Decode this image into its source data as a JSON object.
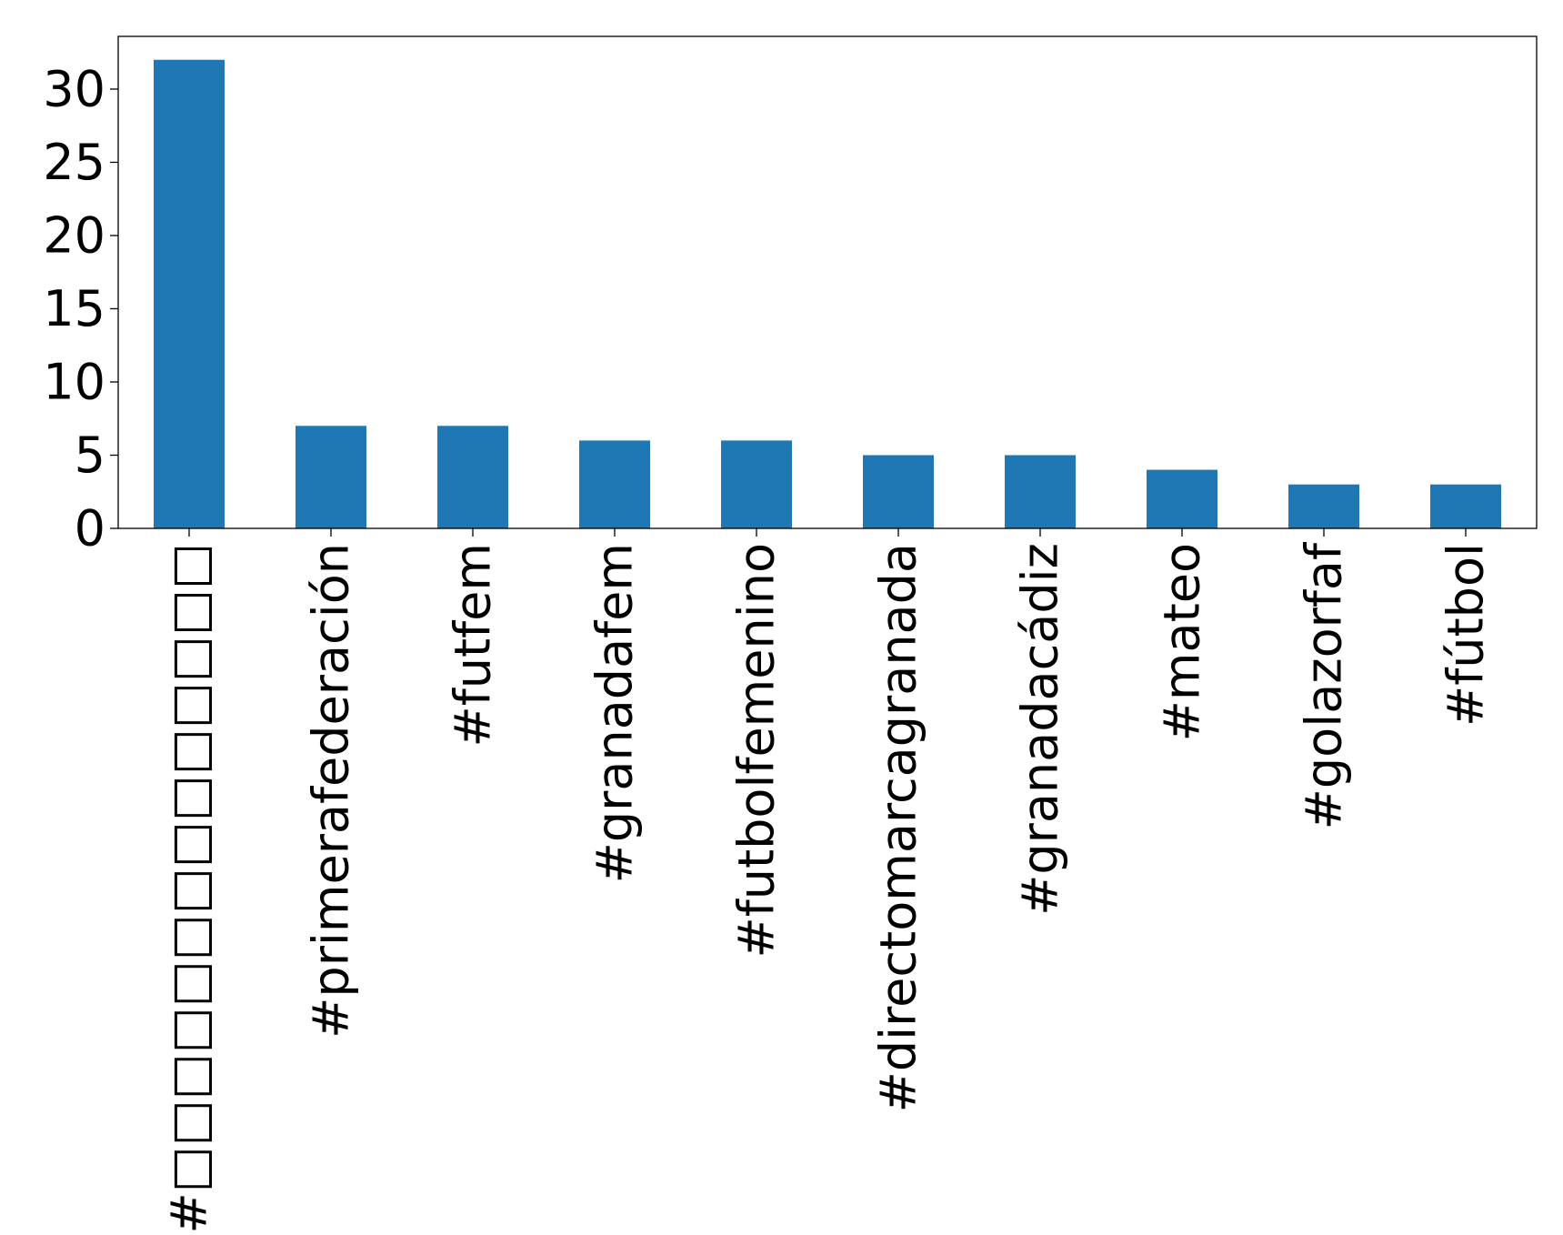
{
  "chart_data": {
    "type": "bar",
    "title": "",
    "xlabel": "",
    "ylabel": "",
    "categories": [
      "#□□□□□□□□□□□□□□",
      "#primerafederación",
      "#futfem",
      "#granadafem",
      "#futbolfemenino",
      "#directomarcagranada",
      "#granadacádiz",
      "#mateo",
      "#golazorfaf",
      "#fútbol"
    ],
    "values": [
      32,
      7,
      7,
      6,
      6,
      5,
      5,
      4,
      3,
      3
    ],
    "ylim": [
      0,
      33.6
    ],
    "yticks": [
      0,
      5,
      10,
      15,
      20,
      25,
      30
    ],
    "grid": false,
    "legend": "none",
    "colors": {
      "bar": "#1f77b4",
      "axis": "#000000",
      "background": "#ffffff"
    }
  }
}
